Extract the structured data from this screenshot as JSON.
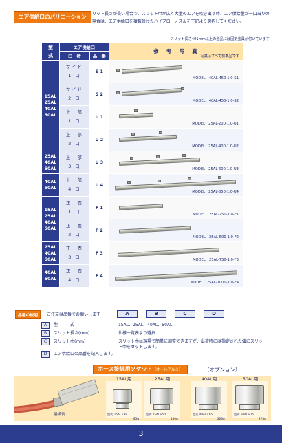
{
  "title": "エア供給口のバリエーション",
  "intro": "スリット長さが長い場合で、スリット巾が広く大量のエアを吹き出す時、エア供給量が一口当りの効率的最大供給風量（基本風量）を起える場合は、エア供給口を複数設けたハイブローノズルを下記より選択してください。",
  "note_top": "スリット長さ401mm以上の全品には固定金具が付いています",
  "table": {
    "header_type_line1": "型",
    "header_type_line2": "式",
    "header_port": "エア供給口",
    "header_count": "口　数",
    "header_code": "品　番",
    "header_photo": "参　考　写　真",
    "header_photo_note": "写真はすべて標準品です",
    "rows": [
      {
        "type": "",
        "port_a": "サイド",
        "port_b": "1 口",
        "code": "S 1",
        "model": "MODEL　40AL-450-1.0-S1"
      },
      {
        "type": "",
        "port_a": "サイド",
        "port_b": "2 口",
        "code": "S 2",
        "model": "MODEL　40AL-450-1.0-S2"
      },
      {
        "type": "",
        "port_a": "上　部",
        "port_b": "1 口",
        "code": "U 1",
        "model": "MODEL　25AL-200-1.0-U1"
      },
      {
        "type": "",
        "port_a": "上　部",
        "port_b": "2 口",
        "code": "U 2",
        "model": "MODEL　25AL-400-1.0-U2"
      },
      {
        "type": "",
        "port_a": "上　部",
        "port_b": "3 口",
        "code": "U 3",
        "model": "MODEL　25AL-600-1.0-U3"
      },
      {
        "type": "",
        "port_a": "上　部",
        "port_b": "4 口",
        "code": "U 4",
        "model": "MODEL　25AL-850-1.0-U4"
      },
      {
        "type": "",
        "port_a": "正　面",
        "port_b": "1 口",
        "code": "F 1",
        "model": "MODEL　25AL-250-1.0-F1"
      },
      {
        "type": "",
        "port_a": "正　面",
        "port_b": "2 口",
        "code": "F 2",
        "model": "MODEL　25AL-500-1.0-F2"
      },
      {
        "type": "",
        "port_a": "正　面",
        "port_b": "3 口",
        "code": "F 3",
        "model": "MODEL　25AL-750-1.0-F3"
      },
      {
        "type": "",
        "port_a": "正　面",
        "port_b": "4 口",
        "code": "F 4",
        "model": "MODEL　25AL-1000-1.0-F4"
      }
    ],
    "type_groups": [
      {
        "label": "15AL 25AL 40AL 50AL"
      },
      {
        "label": "25AL 40AL 50AL"
      },
      {
        "label": "40AL 50AL"
      },
      {
        "label": "15AL 25AL 40AL 50AL"
      },
      {
        "label": "25AL 40AL 50AL"
      },
      {
        "label": "40AL 50AL"
      }
    ]
  },
  "order": {
    "badge": "品番の説明",
    "note": "ご注文は品番でお願いします",
    "codes": [
      "A",
      "B",
      "C",
      "D"
    ],
    "legend": [
      {
        "key": "A",
        "label": "型　　　式",
        "desc": "15AL、25AL、40AL、50AL"
      },
      {
        "key": "B",
        "label": "スリット長さ(mm)",
        "desc": "仕様一覧表より選択"
      },
      {
        "key": "C",
        "label": "スリット巾(mm)",
        "desc": "スリット巾は現場で簡単に調整できますが、出荷時には指定された値にスリット巾をセットします。"
      },
      {
        "key": "D",
        "label": "エア供給口の品番を記入します。",
        "desc": ""
      }
    ]
  },
  "hose": {
    "title": "ホース接続用ソケット",
    "title_small": "（オールアルミ）",
    "option": "（オプション）",
    "example_label": "接続例",
    "sockets": [
      {
        "name": "15AL用",
        "type": "型式 15AL×38",
        "weight": "85g"
      },
      {
        "name": "25AL用",
        "type": "型式 25AL×50",
        "weight": "130g"
      },
      {
        "name": "40AL用",
        "type": "型式 40AL×65",
        "weight": "203g"
      },
      {
        "name": "50AL用",
        "type": "型式 50AL×75",
        "weight": "274g"
      }
    ]
  },
  "page_number": "3",
  "colors": {
    "navy": "#2c3c8f",
    "orange": "#ef7a12",
    "cream": "#ffe3a8"
  }
}
